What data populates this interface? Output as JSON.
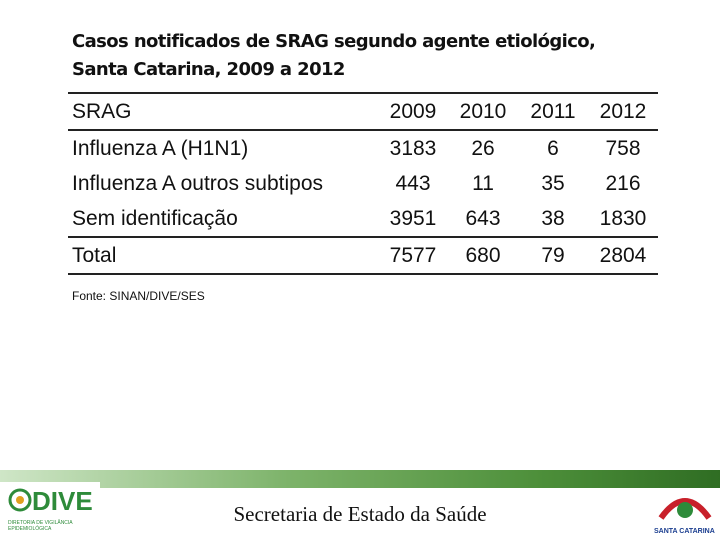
{
  "header": {
    "title_line1": "Casos notificados de SRAG segundo agente etiológico,",
    "title_line2": "Santa Catarina, 2009 a 2012"
  },
  "table": {
    "columns": [
      "SRAG",
      "2009",
      "2010",
      "2011",
      "2012"
    ],
    "rows": [
      [
        "Influenza A (H1N1)",
        3183,
        26,
        6,
        758
      ],
      [
        "Influenza A outros subtipos",
        443,
        11,
        35,
        216
      ],
      [
        "Sem identificação",
        3951,
        643,
        38,
        1830
      ],
      [
        "Total",
        7577,
        680,
        79,
        2804
      ]
    ]
  },
  "source": "Fonte: SINAN/DIVE/SES",
  "footer": {
    "text": "Secretaria de Estado da Saúde",
    "logo_left": "DIVE",
    "logo_left_sub": "DIRETORIA DE VIGILÂNCIA EPIDEMIOLÓGICA",
    "logo_right": "SANTA CATARINA"
  }
}
